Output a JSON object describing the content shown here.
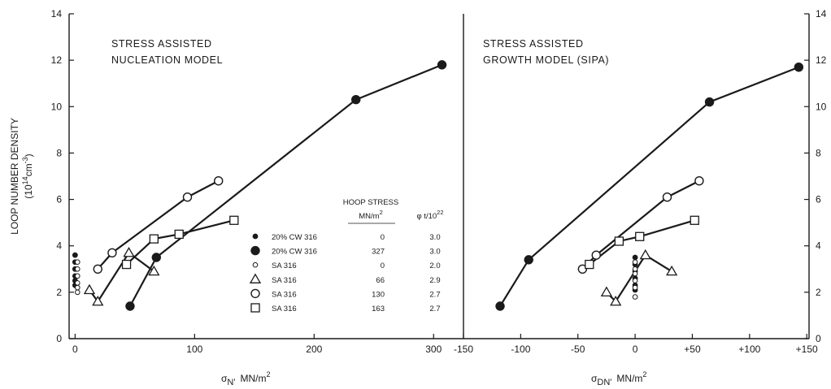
{
  "chart_data": [
    {
      "type": "line",
      "title": [
        "STRESS ASSISTED",
        "NUCLEATION MODEL"
      ],
      "xlabel_symbol": "σ",
      "xlabel_sub": "N'",
      "xlabel_units": "MN/m",
      "xlabel_exp": "2",
      "ylabel_main": "LOOP NUMBER DENSITY",
      "ylabel_units": "(10",
      "ylabel_units_exp1": "14",
      "ylabel_units_cm": "cm",
      "ylabel_units_exp2": "-3",
      "ylabel_units_close": ")",
      "xlim": [
        -5,
        325
      ],
      "ylim": [
        0,
        14
      ],
      "xticks": [
        0,
        100,
        200,
        300
      ],
      "xtick_labels": [
        "0",
        "100",
        "200",
        "300"
      ],
      "yticks": [
        0,
        2,
        4,
        6,
        8,
        10,
        12,
        14
      ],
      "ytick_labels": [
        "0",
        "2",
        "4",
        "6",
        "8",
        "10",
        "12",
        "14"
      ],
      "series": [
        {
          "marker": "small-filled-circle",
          "points": [
            [
              0,
              3.6
            ],
            [
              0,
              3.3
            ],
            [
              0,
              3.0
            ],
            [
              0,
              2.7
            ],
            [
              0,
              2.5
            ],
            [
              0,
              2.3
            ]
          ],
          "connected": false
        },
        {
          "marker": "filled-circle",
          "points": [
            [
              46,
              1.4
            ],
            [
              68,
              3.5
            ],
            [
              235,
              10.3
            ],
            [
              307,
              11.8
            ]
          ],
          "connected": true
        },
        {
          "marker": "small-open-circle",
          "points": [
            [
              2,
              3.3
            ],
            [
              2,
              3.0
            ],
            [
              2,
              2.7
            ],
            [
              2,
              2.4
            ],
            [
              2,
              2.2
            ],
            [
              2,
              2.0
            ]
          ],
          "connected": false
        },
        {
          "marker": "triangle",
          "points": [
            [
              12,
              2.1
            ],
            [
              19,
              1.6
            ],
            [
              45,
              3.7
            ],
            [
              66,
              2.9
            ]
          ],
          "connected": true
        },
        {
          "marker": "open-circle",
          "points": [
            [
              19,
              3.0
            ],
            [
              31,
              3.7
            ],
            [
              94,
              6.1
            ],
            [
              120,
              6.8
            ]
          ],
          "connected": true
        },
        {
          "marker": "square",
          "points": [
            [
              43,
              3.2
            ],
            [
              66,
              4.3
            ],
            [
              87,
              4.5
            ],
            [
              133,
              5.1
            ]
          ],
          "connected": true
        }
      ]
    },
    {
      "type": "line",
      "title": [
        "STRESS ASSISTED",
        "GROWTH MODEL (SIPA)"
      ],
      "xlabel_symbol": "σ",
      "xlabel_sub": "DN'",
      "xlabel_units": "MN/m",
      "xlabel_exp": "2",
      "xlim": [
        -150,
        152
      ],
      "ylim": [
        0,
        14
      ],
      "xticks": [
        -150,
        -100,
        -50,
        0,
        50,
        100,
        150
      ],
      "xtick_labels": [
        "-150",
        "-100",
        "-50",
        "0",
        "+50",
        "+100",
        "+150"
      ],
      "yticks": [
        0,
        2,
        4,
        6,
        8,
        10,
        12,
        14
      ],
      "ytick_labels": [
        "0",
        "2",
        "4",
        "6",
        "8",
        "10",
        "12",
        "14"
      ],
      "series": [
        {
          "marker": "small-filled-circle",
          "points": [
            [
              0,
              3.5
            ],
            [
              0,
              3.2
            ],
            [
              0,
              2.9
            ],
            [
              0,
              2.6
            ],
            [
              0,
              2.3
            ],
            [
              0,
              2.1
            ]
          ],
          "connected": false
        },
        {
          "marker": "filled-circle",
          "points": [
            [
              -118,
              1.4
            ],
            [
              -93,
              3.4
            ],
            [
              65,
              10.2
            ],
            [
              143,
              11.7
            ]
          ],
          "connected": true
        },
        {
          "marker": "small-open-circle",
          "points": [
            [
              0,
              3.3
            ],
            [
              0,
              3.0
            ],
            [
              0,
              2.8
            ],
            [
              0,
              2.5
            ],
            [
              0,
              2.2
            ],
            [
              0,
              1.8
            ]
          ],
          "connected": false
        },
        {
          "marker": "triangle",
          "points": [
            [
              -25,
              2.0
            ],
            [
              -17,
              1.6
            ],
            [
              9,
              3.6
            ],
            [
              32,
              2.9
            ]
          ],
          "connected": true
        },
        {
          "marker": "open-circle",
          "points": [
            [
              -46,
              3.0
            ],
            [
              -34,
              3.6
            ],
            [
              28,
              6.1
            ],
            [
              56,
              6.8
            ]
          ],
          "connected": true
        },
        {
          "marker": "square",
          "points": [
            [
              -40,
              3.2
            ],
            [
              -14,
              4.2
            ],
            [
              4,
              4.4
            ],
            [
              52,
              5.1
            ]
          ],
          "connected": true
        }
      ]
    }
  ],
  "legend": {
    "header_stress": "HOOP STRESS",
    "header_stress_units": "MN/m",
    "header_stress_exp": "2",
    "header_fluence": "φ t/10",
    "header_fluence_exp": "22",
    "rows": [
      {
        "marker": "small-filled-circle",
        "material": "20% CW 316",
        "stress": "0",
        "fluence": "3.0"
      },
      {
        "marker": "filled-circle",
        "material": "20% CW 316",
        "stress": "327",
        "fluence": "3.0"
      },
      {
        "marker": "small-open-circle",
        "material": "SA 316",
        "stress": "0",
        "fluence": "2.0"
      },
      {
        "marker": "triangle",
        "material": "SA 316",
        "stress": "66",
        "fluence": "2.9"
      },
      {
        "marker": "open-circle",
        "material": "SA 316",
        "stress": "130",
        "fluence": "2.7"
      },
      {
        "marker": "square",
        "material": "SA 316",
        "stress": "163",
        "fluence": "2.7"
      }
    ]
  }
}
